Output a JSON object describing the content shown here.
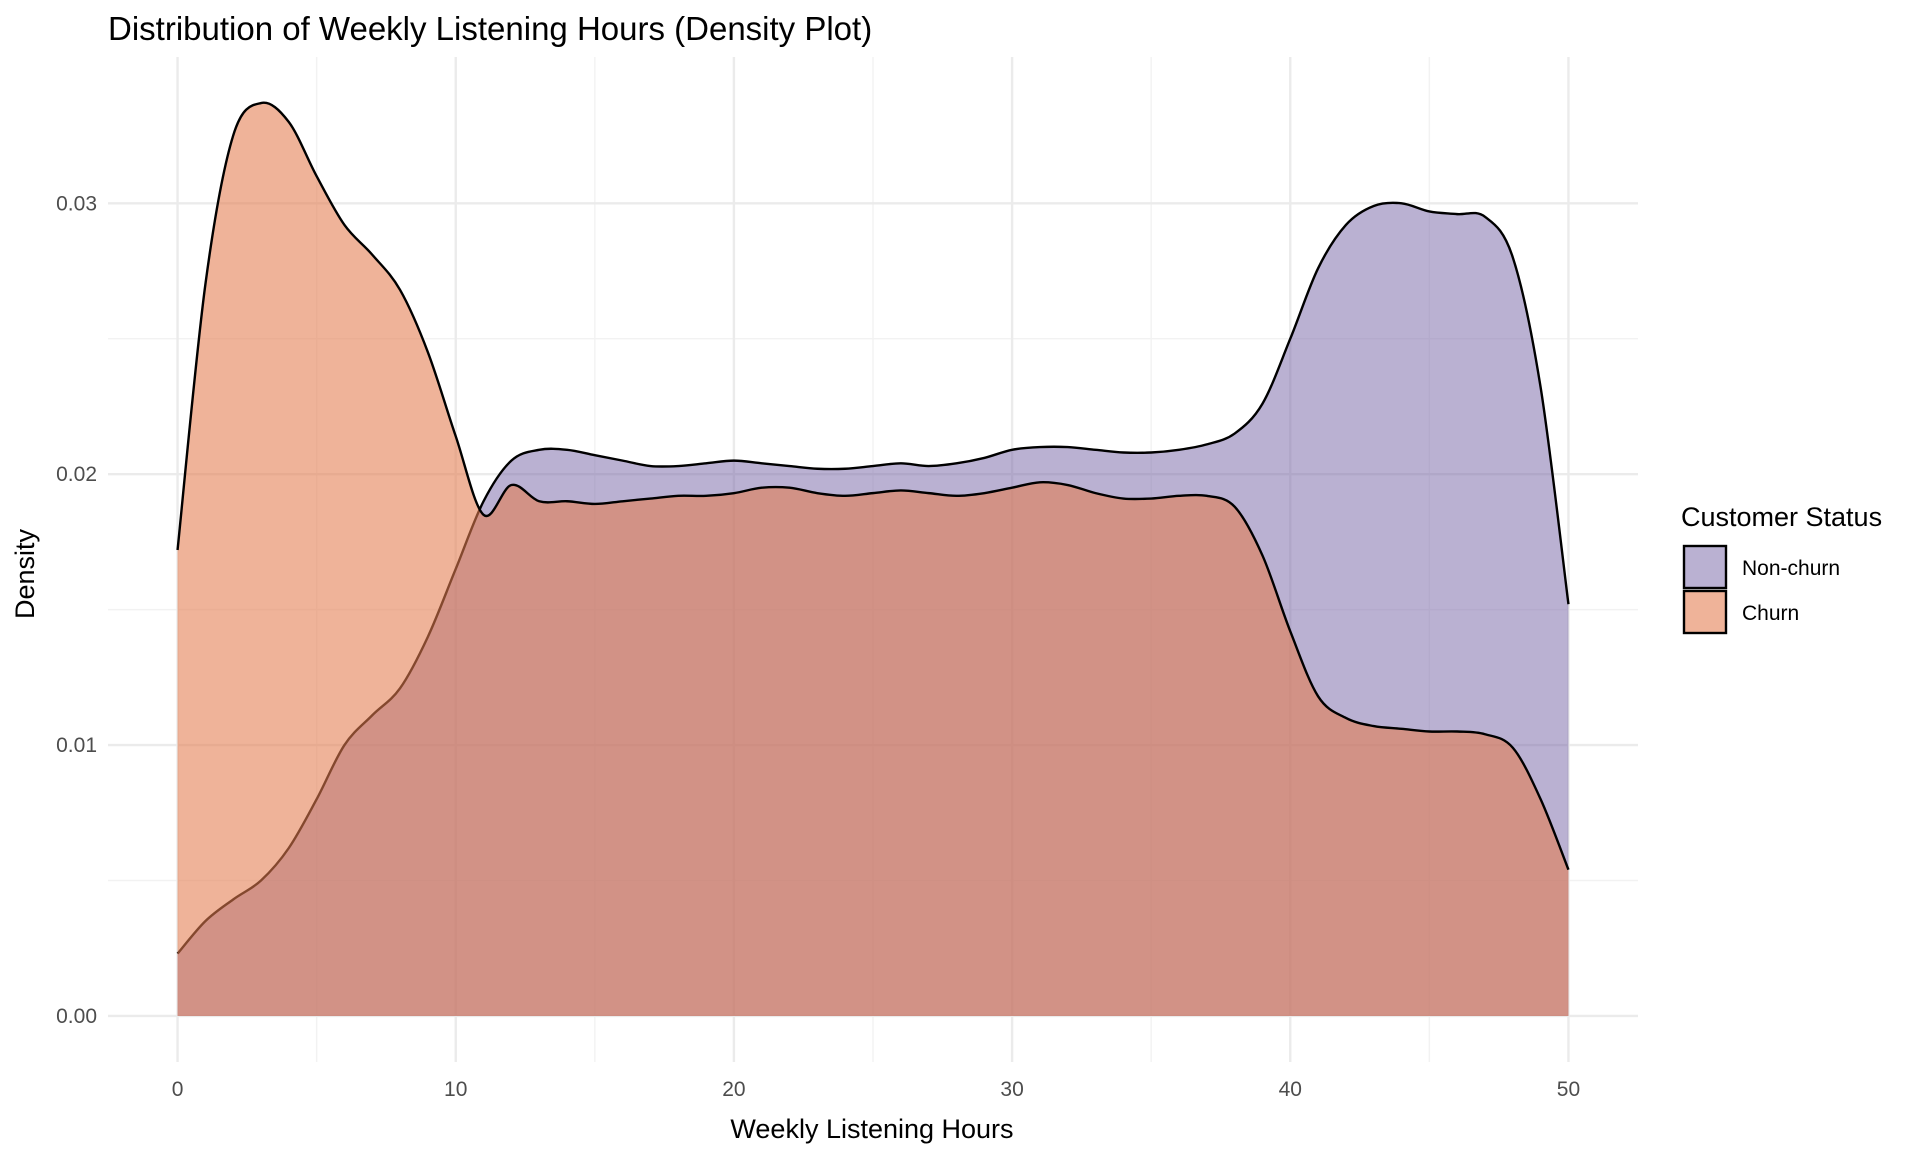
{
  "chart_data": {
    "type": "area",
    "title": "Distribution of Weekly Listening Hours (Density Plot)",
    "xlabel": "Weekly Listening Hours",
    "ylabel": "Density",
    "xlim": [
      -2.5,
      52.5
    ],
    "ylim": [
      -0.0017,
      0.0354
    ],
    "x_ticks": [
      0,
      10,
      20,
      30,
      40,
      50
    ],
    "x_tick_labels": [
      "0",
      "10",
      "20",
      "30",
      "40",
      "50"
    ],
    "y_ticks": [
      0,
      0.01,
      0.02,
      0.03
    ],
    "y_tick_labels": [
      "0.00",
      "0.01",
      "0.02",
      "0.03"
    ],
    "grid": true,
    "legend": {
      "title": "Customer Status",
      "placement": "right",
      "entries": [
        "Non-churn",
        "Churn"
      ]
    },
    "series": [
      {
        "name": "Non-churn",
        "color": "#7b6aa8",
        "opacity": 0.52,
        "x": [
          0,
          1,
          2,
          3,
          4,
          5,
          6,
          7,
          8,
          9,
          10,
          11,
          12,
          13,
          14,
          15,
          16,
          17,
          18,
          19,
          20,
          21,
          22,
          23,
          24,
          25,
          26,
          27,
          28,
          29,
          30,
          31,
          32,
          33,
          34,
          35,
          36,
          37,
          38,
          39,
          40,
          41,
          42,
          43,
          44,
          45,
          46,
          47,
          48,
          49,
          50
        ],
        "y": [
          0.0023,
          0.0035,
          0.0043,
          0.005,
          0.0062,
          0.008,
          0.01,
          0.0111,
          0.0121,
          0.014,
          0.0165,
          0.019,
          0.0205,
          0.0209,
          0.0209,
          0.0207,
          0.0205,
          0.0203,
          0.0203,
          0.0204,
          0.0205,
          0.0204,
          0.0203,
          0.0202,
          0.0202,
          0.0203,
          0.0204,
          0.0203,
          0.0204,
          0.0206,
          0.0209,
          0.021,
          0.021,
          0.0209,
          0.0208,
          0.0208,
          0.0209,
          0.0211,
          0.0215,
          0.0226,
          0.025,
          0.0276,
          0.0292,
          0.0299,
          0.03,
          0.0297,
          0.0296,
          0.0295,
          0.028,
          0.0232,
          0.0152
        ]
      },
      {
        "name": "Churn",
        "color": "#e37c4f",
        "opacity": 0.58,
        "x": [
          0,
          1,
          2,
          3,
          4,
          5,
          6,
          7,
          8,
          9,
          10,
          11,
          12,
          13,
          14,
          15,
          16,
          17,
          18,
          19,
          20,
          21,
          22,
          23,
          24,
          25,
          26,
          27,
          28,
          29,
          30,
          31,
          32,
          33,
          34,
          35,
          36,
          37,
          38,
          39,
          40,
          41,
          42,
          43,
          44,
          45,
          46,
          47,
          48,
          49,
          50
        ],
        "y": [
          0.0172,
          0.027,
          0.0325,
          0.0337,
          0.033,
          0.031,
          0.0292,
          0.0281,
          0.0268,
          0.0245,
          0.0214,
          0.0185,
          0.0196,
          0.019,
          0.019,
          0.0189,
          0.019,
          0.0191,
          0.0192,
          0.0192,
          0.0193,
          0.0195,
          0.0195,
          0.0193,
          0.0192,
          0.0193,
          0.0194,
          0.0193,
          0.0192,
          0.0193,
          0.0195,
          0.0197,
          0.0196,
          0.0193,
          0.0191,
          0.0191,
          0.0192,
          0.0192,
          0.0188,
          0.017,
          0.0142,
          0.0118,
          0.011,
          0.0107,
          0.0106,
          0.0105,
          0.0105,
          0.0104,
          0.0099,
          0.008,
          0.0054
        ]
      }
    ]
  }
}
